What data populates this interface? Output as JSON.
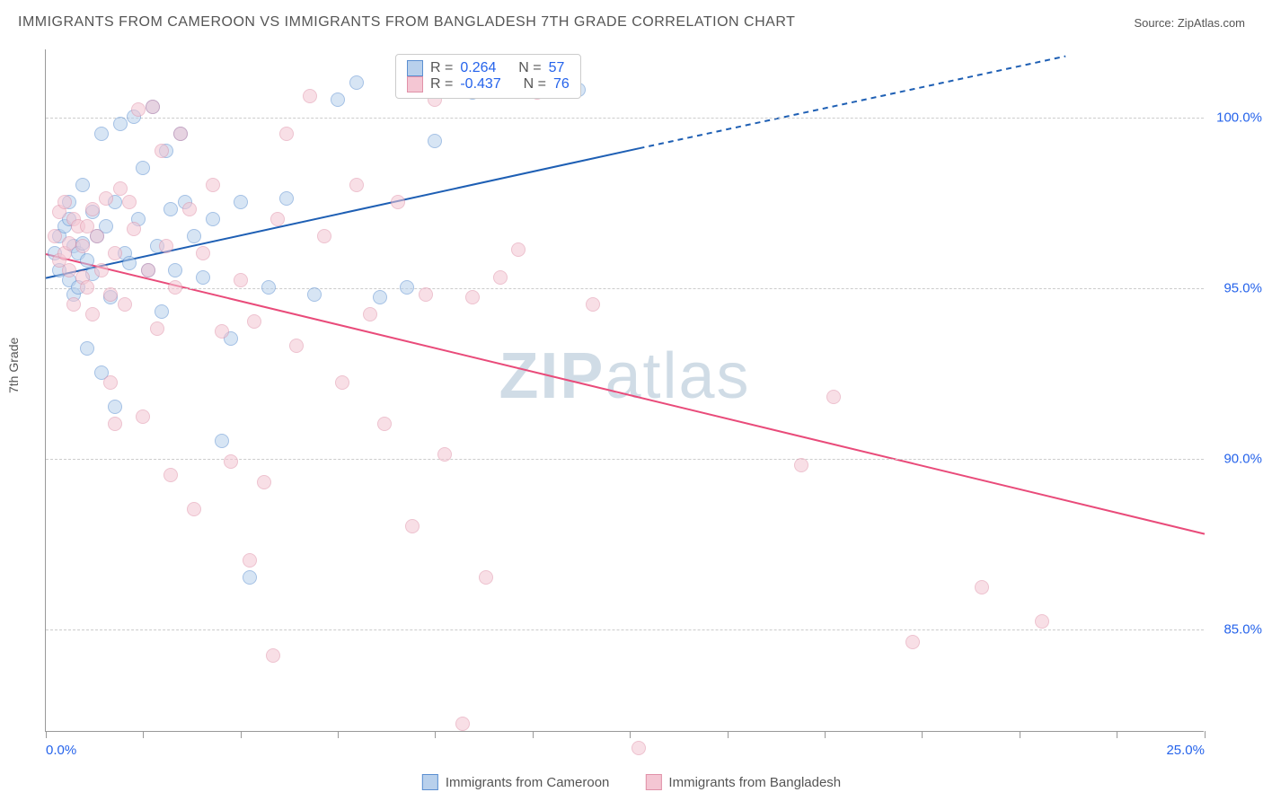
{
  "header": {
    "title": "IMMIGRANTS FROM CAMEROON VS IMMIGRANTS FROM BANGLADESH 7TH GRADE CORRELATION CHART",
    "source": "Source: ZipAtlas.com"
  },
  "watermark": {
    "part1": "ZIP",
    "part2": "atlas"
  },
  "chart": {
    "type": "scatter",
    "ylabel": "7th Grade",
    "background_color": "#ffffff",
    "grid_color": "#cccccc",
    "axis_color": "#999999",
    "label_color": "#555555",
    "tick_value_color": "#2563eb",
    "xlim": [
      0,
      25
    ],
    "ylim": [
      82,
      102
    ],
    "xtick_positions": [
      0,
      2.1,
      4.2,
      6.3,
      8.4,
      10.5,
      12.6,
      14.7,
      16.8,
      18.9,
      21.0,
      23.1,
      25.0
    ],
    "xtick_labels": {
      "0": "0.0%",
      "25": "25.0%"
    },
    "ytick_positions": [
      85,
      90,
      95,
      100
    ],
    "ytick_labels": {
      "85": "85.0%",
      "90": "90.0%",
      "95": "95.0%",
      "100": "100.0%"
    },
    "point_radius": 8,
    "point_opacity": 0.55,
    "point_border_width": 1,
    "series": [
      {
        "name": "Immigrants from Cameroon",
        "fill_color": "#b8d0ec",
        "stroke_color": "#5b8fd1",
        "line_color": "#1e5fb4",
        "line_width": 2,
        "R": "0.264",
        "N": "57",
        "trend": {
          "x1": 0,
          "y1": 95.3,
          "x2": 12.8,
          "y2": 99.1,
          "dash_from_x": 12.8,
          "x3": 22.0,
          "y3": 101.8
        },
        "points": [
          [
            0.2,
            96.0
          ],
          [
            0.3,
            95.5
          ],
          [
            0.3,
            96.5
          ],
          [
            0.4,
            96.8
          ],
          [
            0.5,
            95.2
          ],
          [
            0.5,
            97.0
          ],
          [
            0.5,
            97.5
          ],
          [
            0.6,
            94.8
          ],
          [
            0.6,
            96.2
          ],
          [
            0.7,
            96.0
          ],
          [
            0.7,
            95.0
          ],
          [
            0.8,
            98.0
          ],
          [
            0.8,
            96.3
          ],
          [
            0.9,
            93.2
          ],
          [
            0.9,
            95.8
          ],
          [
            1.0,
            95.4
          ],
          [
            1.0,
            97.2
          ],
          [
            1.1,
            96.5
          ],
          [
            1.2,
            92.5
          ],
          [
            1.2,
            99.5
          ],
          [
            1.3,
            96.8
          ],
          [
            1.4,
            94.7
          ],
          [
            1.5,
            91.5
          ],
          [
            1.5,
            97.5
          ],
          [
            1.6,
            99.8
          ],
          [
            1.7,
            96.0
          ],
          [
            1.8,
            95.7
          ],
          [
            1.9,
            100.0
          ],
          [
            2.0,
            97.0
          ],
          [
            2.1,
            98.5
          ],
          [
            2.2,
            95.5
          ],
          [
            2.3,
            100.3
          ],
          [
            2.4,
            96.2
          ],
          [
            2.5,
            94.3
          ],
          [
            2.6,
            99.0
          ],
          [
            2.7,
            97.3
          ],
          [
            2.8,
            95.5
          ],
          [
            2.9,
            99.5
          ],
          [
            3.0,
            97.5
          ],
          [
            3.2,
            96.5
          ],
          [
            3.4,
            95.3
          ],
          [
            3.6,
            97.0
          ],
          [
            3.8,
            90.5
          ],
          [
            4.0,
            93.5
          ],
          [
            4.2,
            97.5
          ],
          [
            4.4,
            86.5
          ],
          [
            4.8,
            95.0
          ],
          [
            5.2,
            97.6
          ],
          [
            5.8,
            94.8
          ],
          [
            6.3,
            100.5
          ],
          [
            6.7,
            101.0
          ],
          [
            7.2,
            94.7
          ],
          [
            7.8,
            95.0
          ],
          [
            8.4,
            99.3
          ],
          [
            9.2,
            100.7
          ],
          [
            10.0,
            100.8
          ],
          [
            11.5,
            100.8
          ]
        ]
      },
      {
        "name": "Immigrants from Bangladesh",
        "fill_color": "#f4c6d3",
        "stroke_color": "#e091a8",
        "line_color": "#e94b7a",
        "line_width": 2,
        "R": "-0.437",
        "N": "76",
        "trend": {
          "x1": 0,
          "y1": 96.0,
          "x2": 25,
          "y2": 87.8
        },
        "points": [
          [
            0.2,
            96.5
          ],
          [
            0.3,
            95.8
          ],
          [
            0.3,
            97.2
          ],
          [
            0.4,
            96.0
          ],
          [
            0.4,
            97.5
          ],
          [
            0.5,
            95.5
          ],
          [
            0.5,
            96.3
          ],
          [
            0.6,
            97.0
          ],
          [
            0.6,
            94.5
          ],
          [
            0.7,
            96.8
          ],
          [
            0.8,
            95.3
          ],
          [
            0.8,
            96.2
          ],
          [
            0.9,
            95.0
          ],
          [
            0.9,
            96.8
          ],
          [
            1.0,
            94.2
          ],
          [
            1.0,
            97.3
          ],
          [
            1.1,
            96.5
          ],
          [
            1.2,
            95.5
          ],
          [
            1.3,
            97.6
          ],
          [
            1.4,
            94.8
          ],
          [
            1.4,
            92.2
          ],
          [
            1.5,
            91.0
          ],
          [
            1.5,
            96.0
          ],
          [
            1.6,
            97.9
          ],
          [
            1.7,
            94.5
          ],
          [
            1.8,
            97.5
          ],
          [
            1.9,
            96.7
          ],
          [
            2.0,
            100.2
          ],
          [
            2.1,
            91.2
          ],
          [
            2.2,
            95.5
          ],
          [
            2.3,
            100.3
          ],
          [
            2.4,
            93.8
          ],
          [
            2.5,
            99.0
          ],
          [
            2.6,
            96.2
          ],
          [
            2.7,
            89.5
          ],
          [
            2.8,
            95.0
          ],
          [
            2.9,
            99.5
          ],
          [
            3.1,
            97.3
          ],
          [
            3.2,
            88.5
          ],
          [
            3.4,
            96.0
          ],
          [
            3.6,
            98.0
          ],
          [
            3.8,
            93.7
          ],
          [
            4.0,
            89.9
          ],
          [
            4.2,
            95.2
          ],
          [
            4.4,
            87.0
          ],
          [
            4.5,
            94.0
          ],
          [
            4.7,
            89.3
          ],
          [
            4.9,
            84.2
          ],
          [
            5.0,
            97.0
          ],
          [
            5.2,
            99.5
          ],
          [
            5.4,
            93.3
          ],
          [
            5.7,
            100.6
          ],
          [
            6.0,
            96.5
          ],
          [
            6.4,
            92.2
          ],
          [
            6.7,
            98.0
          ],
          [
            7.0,
            94.2
          ],
          [
            7.3,
            91.0
          ],
          [
            7.6,
            97.5
          ],
          [
            7.9,
            88.0
          ],
          [
            8.2,
            94.8
          ],
          [
            8.4,
            100.5
          ],
          [
            8.6,
            90.1
          ],
          [
            9.0,
            82.2
          ],
          [
            9.2,
            94.7
          ],
          [
            9.5,
            86.5
          ],
          [
            9.8,
            95.3
          ],
          [
            10.2,
            96.1
          ],
          [
            10.6,
            100.7
          ],
          [
            11.0,
            101.0
          ],
          [
            11.8,
            94.5
          ],
          [
            12.8,
            81.5
          ],
          [
            16.3,
            89.8
          ],
          [
            17.0,
            91.8
          ],
          [
            18.7,
            84.6
          ],
          [
            20.2,
            86.2
          ],
          [
            21.5,
            85.2
          ]
        ]
      }
    ]
  },
  "stats_box": {
    "r_label": "R =",
    "n_label": "N ="
  },
  "legend_bottom": {
    "items": [
      "Immigrants from Cameroon",
      "Immigrants from Bangladesh"
    ]
  }
}
